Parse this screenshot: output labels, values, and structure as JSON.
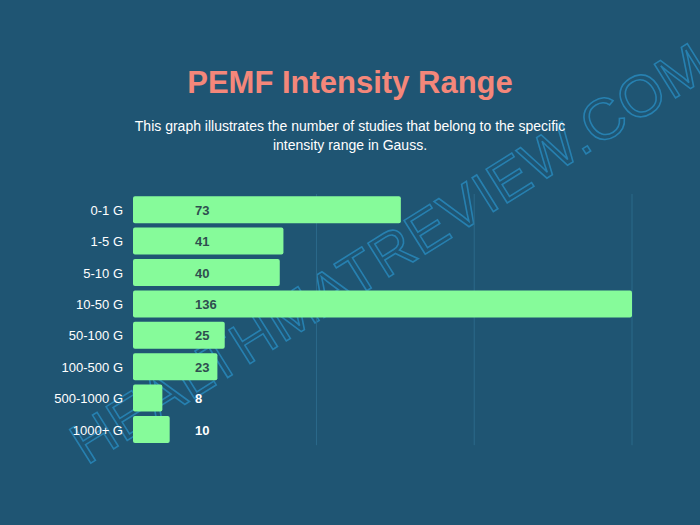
{
  "chart_data": {
    "type": "bar",
    "orientation": "horizontal",
    "title": "PEMF Intensity Range",
    "subtitle": "This graph illustrates the number of studies that belong to the specific intensity range in Gauss.",
    "annotations": [
      "HEALTHMATREVIEW.COM"
    ],
    "categories": [
      "0-1 G",
      "1-5 G",
      "5-10 G",
      "10-50 G",
      "50-100 G",
      "100-500 G",
      "500-1000 G",
      "1000+ G"
    ],
    "values": [
      73,
      41,
      40,
      136,
      25,
      23,
      8,
      10
    ],
    "color": "#86fb9a",
    "xlim": [
      0,
      136
    ],
    "xticks": [
      50,
      93,
      136
    ],
    "grid": true,
    "tick_labels": false,
    "data_labels": true
  }
}
